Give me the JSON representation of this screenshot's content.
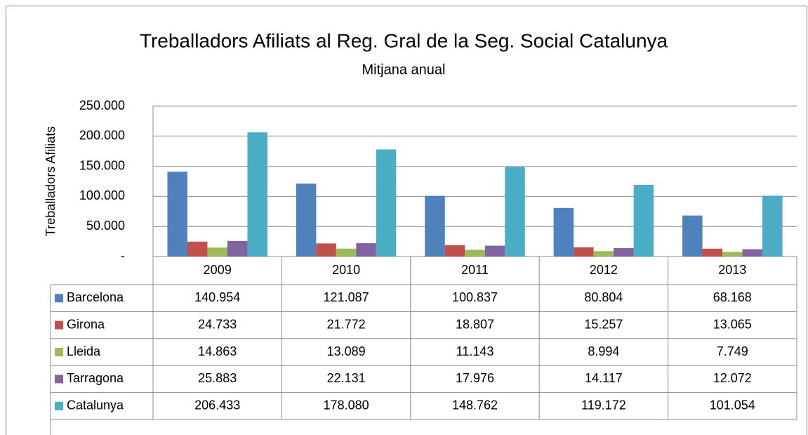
{
  "chart_data": {
    "type": "bar",
    "title": "Treballadors Afiliats al Reg. Gral de la Seg. Social Catalunya",
    "subtitle": "Mitjana anual",
    "y_label": "Treballadors Afiliats",
    "categories": [
      "2009",
      "2010",
      "2011",
      "2012",
      "2013"
    ],
    "series": [
      {
        "name": "Barcelona",
        "color": "#4f81bd",
        "values": [
          140954,
          121087,
          100837,
          80804,
          68168
        ],
        "value_labels": [
          "140.954",
          "121.087",
          "100.837",
          "80.804",
          "68.168"
        ]
      },
      {
        "name": "Girona",
        "color": "#c0504d",
        "values": [
          24733,
          21772,
          18807,
          15257,
          13065
        ],
        "value_labels": [
          "24.733",
          "21.772",
          "18.807",
          "15.257",
          "13.065"
        ]
      },
      {
        "name": "Lleida",
        "color": "#9bbb59",
        "values": [
          14863,
          13089,
          11143,
          8994,
          7749
        ],
        "value_labels": [
          "14.863",
          "13.089",
          "11.143",
          "8.994",
          "7.749"
        ]
      },
      {
        "name": "Tarragona",
        "color": "#8064a2",
        "values": [
          25883,
          22131,
          17976,
          14117,
          12072
        ],
        "value_labels": [
          "25.883",
          "22.131",
          "17.976",
          "14.117",
          "12.072"
        ]
      },
      {
        "name": "Catalunya",
        "color": "#4bacc6",
        "values": [
          206433,
          178080,
          148762,
          119172,
          101054
        ],
        "value_labels": [
          "206.433",
          "178.080",
          "148.762",
          "119.172",
          "101.054"
        ]
      }
    ],
    "ylim": [
      0,
      250000
    ],
    "yticks": [
      {
        "value": 0,
        "label": "-"
      },
      {
        "value": 50000,
        "label": "50.000"
      },
      {
        "value": 100000,
        "label": "100.000"
      },
      {
        "value": 150000,
        "label": "150.000"
      },
      {
        "value": 200000,
        "label": "200.000"
      },
      {
        "value": 250000,
        "label": "250.000"
      }
    ],
    "grid": true
  }
}
